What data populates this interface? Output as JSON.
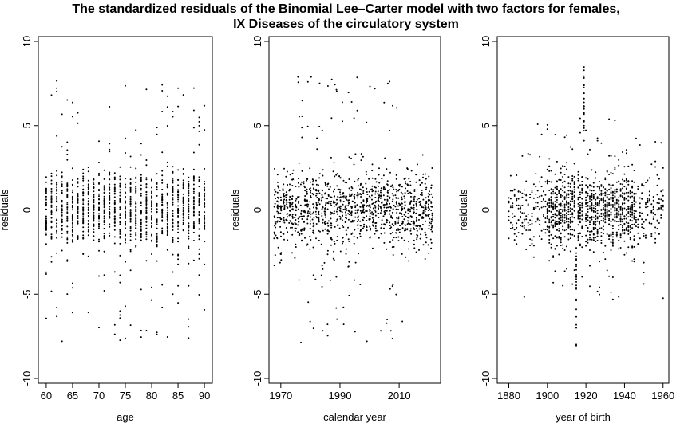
{
  "title": {
    "line1": "The standardized residuals of the Binomial Lee–Carter model with two factors for females,",
    "line2": "IX Diseases of the circulatory system"
  },
  "chart_data": [
    {
      "type": "scatter",
      "xlabel": "age",
      "ylabel": "residuals",
      "xlim": [
        58.5,
        91.5
      ],
      "ylim": [
        -10,
        10
      ],
      "xticks": [
        60,
        65,
        70,
        75,
        80,
        85,
        90
      ],
      "yticks": [
        -10,
        -5,
        0,
        5,
        10
      ],
      "hline": 0,
      "grid": false,
      "point_summary": {
        "x_values": "integer ages 60 to 90 (one vertical column of points per age)",
        "typical_y_range": [
          -2.5,
          2.5
        ],
        "overall_y_range": [
          -8.1,
          9.3
        ]
      }
    },
    {
      "type": "scatter",
      "xlabel": "calendar year",
      "ylabel": "residuals",
      "xlim": [
        1966,
        2024
      ],
      "ylim": [
        -10,
        10
      ],
      "xticks": [
        1970,
        1990,
        2010
      ],
      "yticks": [
        -10,
        -5,
        0,
        5,
        10
      ],
      "hline": 0,
      "grid": false,
      "point_summary": {
        "x_values": "calendar years 1968 to 2021",
        "typical_y_range": [
          -2.5,
          2.5
        ],
        "overall_y_range": [
          -8.1,
          9.3
        ]
      }
    },
    {
      "type": "scatter",
      "xlabel": "year of birth",
      "ylabel": "residuals",
      "xlim": [
        1874,
        1963
      ],
      "ylim": [
        -10,
        10
      ],
      "xticks": [
        1880,
        1900,
        1920,
        1940,
        1960
      ],
      "yticks": [
        -10,
        -5,
        0,
        5,
        10
      ],
      "hline": 0,
      "grid": false,
      "point_summary": {
        "x_values": "birth years 1880 to 1960",
        "extreme_columns": [
          1915,
          1919
        ],
        "overall_y_range": [
          -8.1,
          9.3
        ]
      }
    }
  ]
}
